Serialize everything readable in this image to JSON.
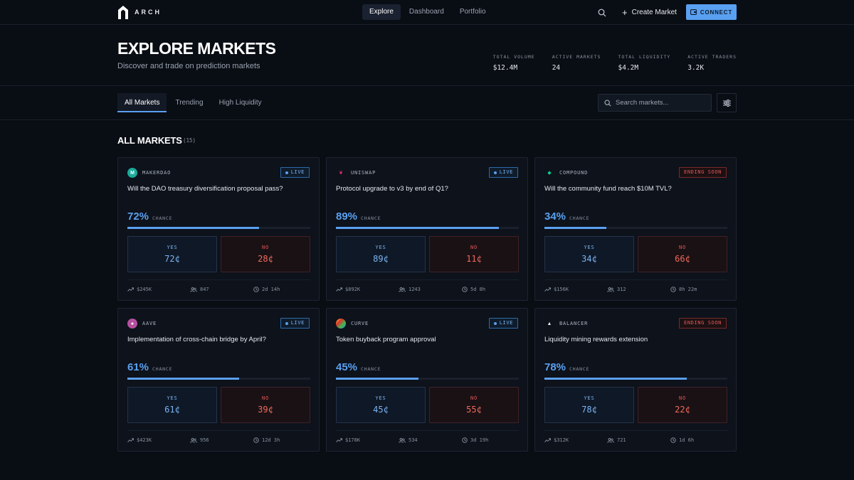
{
  "brand": {
    "name": "ARCH"
  },
  "nav": {
    "items": [
      "Explore",
      "Dashboard",
      "Portfolio"
    ],
    "active": 0
  },
  "actions": {
    "create_label": "Create Market",
    "connect_label": "CONNECT"
  },
  "header": {
    "title": "EXPLORE MARKETS",
    "subtitle": "Discover and trade on prediction markets",
    "stats": [
      {
        "label": "TOTAL VOLUME",
        "value": "$12.4M"
      },
      {
        "label": "ACTIVE MARKETS",
        "value": "24"
      },
      {
        "label": "TOTAL LIQUIDITY",
        "value": "$4.2M"
      },
      {
        "label": "ACTIVE TRADERS",
        "value": "3.2K"
      }
    ]
  },
  "tabs": {
    "items": [
      "All Markets",
      "Trending",
      "High Liquidity"
    ],
    "active": 0
  },
  "search": {
    "placeholder": "Search markets..."
  },
  "section": {
    "title": "ALL MARKETS",
    "count": "(15)"
  },
  "colors": {
    "accent": "#5aa0f0",
    "no": "#e25a5a",
    "bg": "#090d14"
  },
  "markets": [
    {
      "protocol": "MAKERDAO",
      "icon": "makerdao-logo-icon",
      "status": "LIVE",
      "question": "Will the DAO treasury diversification proposal pass?",
      "chance": 72,
      "chance_text": "72%",
      "chance_label": "CHANCE",
      "yes_label": "YES",
      "yes_price": "72¢",
      "no_label": "NO",
      "no_price": "28¢",
      "volume": "$245K",
      "traders": "847",
      "time_left": "2d 14h"
    },
    {
      "protocol": "UNISWAP",
      "icon": "uniswap-logo-icon",
      "status": "LIVE",
      "question": "Protocol upgrade to v3 by end of Q1?",
      "chance": 89,
      "chance_text": "89%",
      "chance_label": "CHANCE",
      "yes_label": "YES",
      "yes_price": "89¢",
      "no_label": "NO",
      "no_price": "11¢",
      "volume": "$892K",
      "traders": "1243",
      "time_left": "5d 8h"
    },
    {
      "protocol": "COMPOUND",
      "icon": "compound-logo-icon",
      "status": "ENDING SOON",
      "question": "Will the community fund reach $10M TVL?",
      "chance": 34,
      "chance_text": "34%",
      "chance_label": "CHANCE",
      "yes_label": "YES",
      "yes_price": "34¢",
      "no_label": "NO",
      "no_price": "66¢",
      "volume": "$156K",
      "traders": "312",
      "time_left": "8h 22m"
    },
    {
      "protocol": "AAVE",
      "icon": "aave-logo-icon",
      "status": "LIVE",
      "question": "Implementation of cross-chain bridge by April?",
      "chance": 61,
      "chance_text": "61%",
      "chance_label": "CHANCE",
      "yes_label": "YES",
      "yes_price": "61¢",
      "no_label": "NO",
      "no_price": "39¢",
      "volume": "$423K",
      "traders": "956",
      "time_left": "12d 3h"
    },
    {
      "protocol": "CURVE",
      "icon": "curve-logo-icon",
      "status": "LIVE",
      "question": "Token buyback program approval",
      "chance": 45,
      "chance_text": "45%",
      "chance_label": "CHANCE",
      "yes_label": "YES",
      "yes_price": "45¢",
      "no_label": "NO",
      "no_price": "55¢",
      "volume": "$178K",
      "traders": "534",
      "time_left": "3d 19h"
    },
    {
      "protocol": "BALANCER",
      "icon": "balancer-logo-icon",
      "status": "ENDING SOON",
      "question": "Liquidity mining rewards extension",
      "chance": 78,
      "chance_text": "78%",
      "chance_label": "CHANCE",
      "yes_label": "YES",
      "yes_price": "78¢",
      "no_label": "NO",
      "no_price": "22¢",
      "volume": "$312K",
      "traders": "721",
      "time_left": "1d 6h"
    }
  ]
}
